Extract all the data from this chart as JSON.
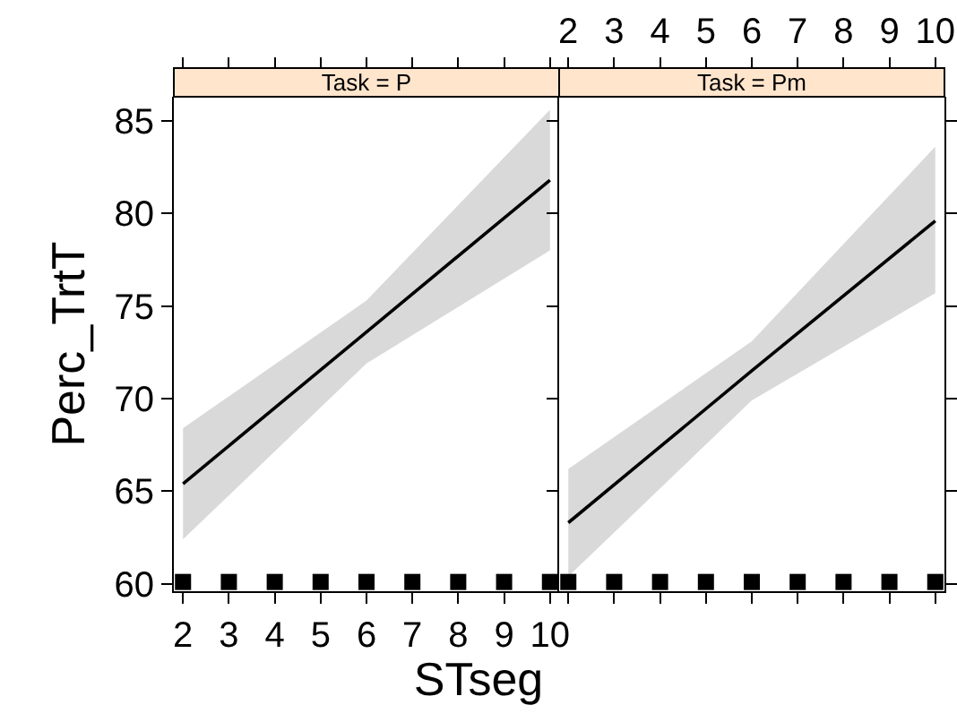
{
  "chart_data": [
    {
      "type": "line",
      "title": "Task = P",
      "xlabel": "STseg",
      "ylabel": "Perc_TrtT",
      "xlim": [
        1.8,
        10.2
      ],
      "xticks": [
        2,
        3,
        4,
        5,
        6,
        7,
        8,
        9,
        10
      ],
      "ylim": [
        59.6,
        86.3
      ],
      "yticks": [
        60,
        65,
        70,
        75,
        80,
        85
      ],
      "grid": false,
      "line_style": "solid",
      "series": [
        {
          "type": "line",
          "color": "#000000",
          "marker": "none",
          "x": [
            2,
            6,
            10
          ],
          "values": [
            65.4,
            73.6,
            81.8
          ],
          "lower": [
            62.4,
            71.9,
            78.0
          ],
          "upper": [
            68.4,
            75.3,
            85.6
          ]
        },
        {
          "type": "scatter",
          "color": "#000000",
          "marker": "square",
          "x": [
            2,
            3,
            4,
            5,
            6,
            7,
            8,
            9,
            10
          ],
          "values": [
            60.1,
            60.1,
            60.1,
            60.1,
            60.1,
            60.1,
            60.1,
            60.1,
            60.1
          ]
        }
      ]
    },
    {
      "type": "line",
      "title": "Task = Pm",
      "xlim": [
        1.8,
        10.2
      ],
      "xticks": [
        2,
        3,
        4,
        5,
        6,
        7,
        8,
        9,
        10
      ],
      "ylim": [
        59.6,
        86.3
      ],
      "yticks": [
        60,
        65,
        70,
        75,
        80,
        85
      ],
      "tick_labels": "x",
      "grid": false,
      "line_style": "solid",
      "series": [
        {
          "type": "line",
          "color": "#000000",
          "marker": "none",
          "x": [
            2,
            6,
            10
          ],
          "values": [
            63.3,
            71.5,
            79.6
          ],
          "lower": [
            60.4,
            69.9,
            75.7
          ],
          "upper": [
            66.2,
            73.1,
            83.6
          ]
        },
        {
          "type": "scatter",
          "color": "#000000",
          "marker": "square",
          "x": [
            2,
            3,
            4,
            5,
            6,
            7,
            8,
            9,
            10
          ],
          "values": [
            60.1,
            60.1,
            60.1,
            60.1,
            60.1,
            60.1,
            60.1,
            60.1,
            60.1
          ]
        }
      ]
    }
  ]
}
